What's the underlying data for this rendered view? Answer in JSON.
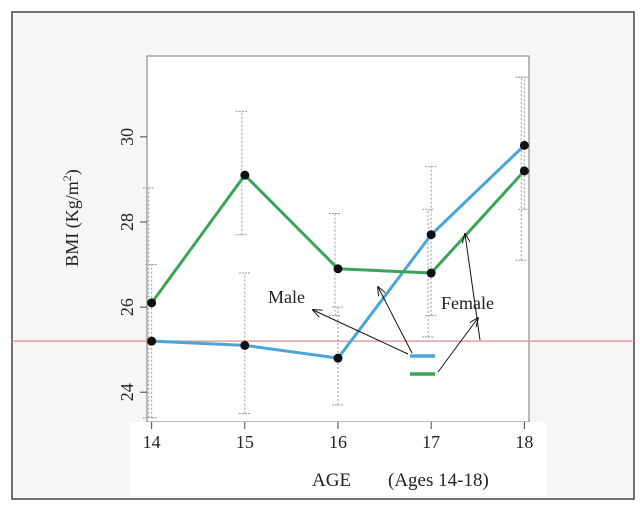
{
  "chart_data": {
    "type": "line",
    "xlabel": "AGE",
    "xlabel_note": "(Ages 14-18)",
    "ylabel_main": "BMI (Kg/m",
    "ylabel_sup": "2",
    "ylabel_end": ")",
    "x": [
      14,
      15,
      16,
      17,
      18
    ],
    "xlim": [
      13.95,
      18.05
    ],
    "ylim": [
      23.3,
      31.9
    ],
    "y_ticks": [
      24,
      26,
      28,
      30
    ],
    "grid": false,
    "reference_line_y": 25.2,
    "series": [
      {
        "name": "Male",
        "color": "#4aa6d8",
        "values": [
          25.2,
          25.1,
          24.8,
          27.7,
          29.8
        ],
        "error_low": [
          23.4,
          23.5,
          23.7,
          25.8,
          28.3
        ],
        "error_high": [
          27.0,
          26.8,
          26.0,
          29.3,
          31.4
        ]
      },
      {
        "name": "Female",
        "color": "#3aa55a",
        "values": [
          26.1,
          29.1,
          26.9,
          26.8,
          29.2
        ],
        "error_low": [
          23.4,
          27.7,
          25.8,
          25.3,
          27.1
        ],
        "error_high": [
          28.8,
          30.6,
          28.2,
          28.3,
          31.4
        ]
      }
    ],
    "annotations": {
      "male_label": "Male",
      "female_label": "Female"
    }
  }
}
